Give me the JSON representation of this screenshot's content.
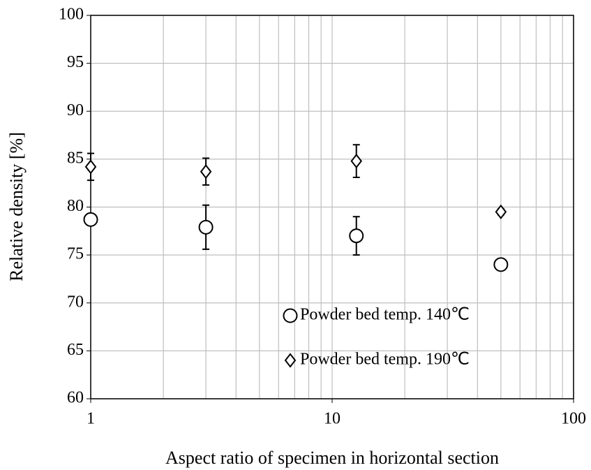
{
  "chart_data": {
    "type": "scatter",
    "xlabel": "Aspect ratio of specimen in horizontal section",
    "ylabel": "Relative density [%]",
    "xscale": "log",
    "xlim": [
      1,
      100
    ],
    "xticks": [
      1,
      10,
      100
    ],
    "ylim": [
      60,
      100
    ],
    "yticks": [
      60,
      65,
      70,
      75,
      80,
      85,
      90,
      95,
      100
    ],
    "grid": true,
    "series": [
      {
        "name": "Powder bed temp. 140℃",
        "marker": "circle",
        "color": "#000000",
        "x": [
          1,
          3,
          12.6,
          50
        ],
        "values": [
          78.7,
          77.9,
          77.0,
          74.0
        ],
        "errors": [
          0,
          2.3,
          2.0,
          0.6
        ]
      },
      {
        "name": "Powder bed temp. 190℃",
        "marker": "diamond",
        "color": "#000000",
        "x": [
          1,
          3,
          12.6,
          50
        ],
        "values": [
          84.2,
          83.7,
          84.8,
          79.5
        ],
        "errors": [
          1.4,
          1.4,
          1.7,
          0.3
        ]
      }
    ]
  }
}
